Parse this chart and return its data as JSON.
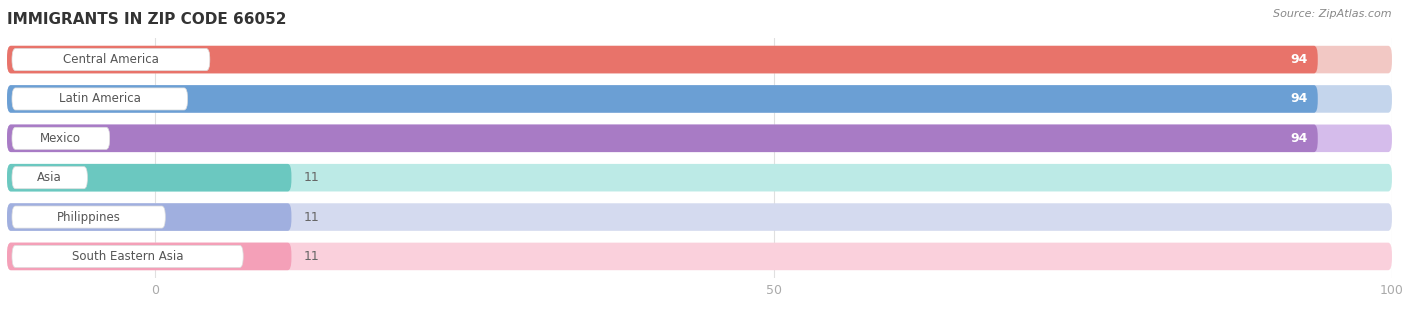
{
  "title": "IMMIGRANTS IN ZIP CODE 66052",
  "source": "Source: ZipAtlas.com",
  "categories": [
    "Central America",
    "Latin America",
    "Mexico",
    "Asia",
    "Philippines",
    "South Eastern Asia"
  ],
  "values": [
    94,
    94,
    94,
    11,
    11,
    11
  ],
  "bar_colors": [
    "#E8736A",
    "#6B9FD4",
    "#A87BC5",
    "#6BC8C0",
    "#A0AFDF",
    "#F4A0B8"
  ],
  "bar_bg_colors": [
    "#F2C8C4",
    "#C4D5EC",
    "#D5BCEB",
    "#BCEAE6",
    "#D4DAEF",
    "#FAD0DC"
  ],
  "value_label_inside": [
    true,
    true,
    true,
    false,
    false,
    false
  ],
  "xlim_min": -12,
  "xlim_max": 100,
  "bg_color": "#ffffff",
  "bar_bg_color": "#f0f0f0",
  "title_color": "#333333",
  "source_color": "#888888",
  "tick_color": "#aaaaaa",
  "label_text_color": "#555555",
  "value_inside_color": "#ffffff",
  "value_outside_color": "#666666"
}
